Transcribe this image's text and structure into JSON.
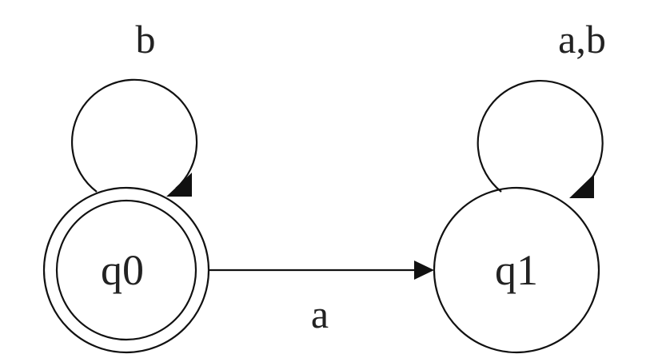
{
  "states": [
    {
      "id": "q0",
      "label": "q0",
      "accepting": true
    },
    {
      "id": "q1",
      "label": "q1",
      "accepting": false
    }
  ],
  "transitions": [
    {
      "from": "q0",
      "to": "q0",
      "label": "b"
    },
    {
      "from": "q0",
      "to": "q1",
      "label": "a"
    },
    {
      "from": "q1",
      "to": "q1",
      "label": "a,b"
    }
  ],
  "colors": {
    "stroke": "#111111",
    "text": "#222222",
    "background": "#ffffff"
  }
}
